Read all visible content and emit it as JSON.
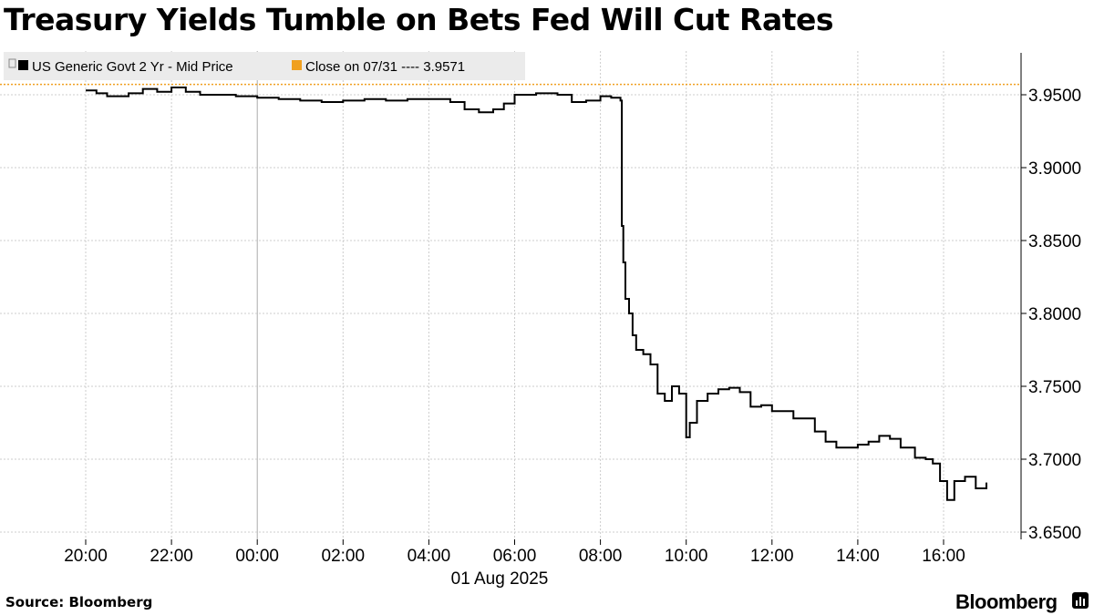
{
  "title": "Treasury Yields Tumble on Bets Fed Will Cut Rates",
  "source": "Source: Bloomberg",
  "brand": "Bloomberg",
  "colors": {
    "series": "#000000",
    "close_line": "#f0a020",
    "grid": "#cccccc",
    "legend_bg": "#ebebeb"
  },
  "chart_data": {
    "type": "line",
    "title": "Treasury Yields Tumble on Bets Fed Will Cut Rates",
    "xlabel": "01 Aug 2025",
    "ylabel": "",
    "ylim": [
      3.645,
      3.985
    ],
    "xlim_hours": [
      19.5,
      23.9
    ],
    "grid": true,
    "legend_placement": "top-left",
    "legend": [
      {
        "label": "US Generic Govt 2 Yr - Mid Price",
        "color": "#000000",
        "marker": "square"
      },
      {
        "label": "Close on 07/31 ---- 3.9571",
        "color": "#f0a020",
        "marker": "square"
      }
    ],
    "reference_line": {
      "label": "Close on 07/31",
      "value": 3.9571
    },
    "x_tick_labels": [
      "20:00",
      "22:00",
      "00:00",
      "02:00",
      "04:00",
      "06:00",
      "08:00",
      "10:00",
      "12:00",
      "14:00",
      "16:00"
    ],
    "y_tick_labels": [
      "3.9500",
      "3.9000",
      "3.8500",
      "3.8000",
      "3.7500",
      "3.7000",
      "3.6500"
    ],
    "y_ticks": [
      3.95,
      3.9,
      3.85,
      3.8,
      3.75,
      3.7,
      3.65
    ],
    "series": [
      {
        "name": "US Generic Govt 2 Yr - Mid Price",
        "x": [
          "07-31 20:00",
          "07-31 20:15",
          "07-31 20:30",
          "07-31 21:00",
          "07-31 21:20",
          "07-31 21:40",
          "07-31 22:00",
          "07-31 22:20",
          "07-31 22:40",
          "07-31 23:00",
          "07-31 23:30",
          "08-01 00:00",
          "08-01 00:30",
          "08-01 01:00",
          "08-01 01:30",
          "08-01 02:00",
          "08-01 02:30",
          "08-01 03:00",
          "08-01 03:30",
          "08-01 04:00",
          "08-01 04:30",
          "08-01 04:50",
          "08-01 05:10",
          "08-01 05:30",
          "08-01 05:45",
          "08-01 06:00",
          "08-01 06:30",
          "08-01 07:00",
          "08-01 07:20",
          "08-01 07:40",
          "08-01 08:00",
          "08-01 08:15",
          "08-01 08:28",
          "08-01 08:30",
          "08-01 08:32",
          "08-01 08:35",
          "08-01 08:40",
          "08-01 08:45",
          "08-01 08:50",
          "08-01 09:00",
          "08-01 09:10",
          "08-01 09:20",
          "08-01 09:30",
          "08-01 09:40",
          "08-01 09:50",
          "08-01 10:00",
          "08-01 10:05",
          "08-01 10:15",
          "08-01 10:30",
          "08-01 10:45",
          "08-01 11:00",
          "08-01 11:15",
          "08-01 11:30",
          "08-01 11:45",
          "08-01 12:00",
          "08-01 12:30",
          "08-01 13:00",
          "08-01 13:15",
          "08-01 13:30",
          "08-01 14:00",
          "08-01 14:15",
          "08-01 14:30",
          "08-01 14:45",
          "08-01 15:00",
          "08-01 15:20",
          "08-01 15:35",
          "08-01 15:45",
          "08-01 15:55",
          "08-01 16:05",
          "08-01 16:15",
          "08-01 16:30",
          "08-01 16:45",
          "08-01 17:00"
        ],
        "values": [
          3.953,
          3.951,
          3.949,
          3.951,
          3.954,
          3.952,
          3.955,
          3.952,
          3.95,
          3.95,
          3.949,
          3.948,
          3.947,
          3.946,
          3.945,
          3.946,
          3.947,
          3.946,
          3.947,
          3.947,
          3.945,
          3.94,
          3.938,
          3.94,
          3.944,
          3.95,
          3.951,
          3.95,
          3.945,
          3.946,
          3.949,
          3.948,
          3.946,
          3.86,
          3.835,
          3.81,
          3.8,
          3.785,
          3.775,
          3.772,
          3.765,
          3.745,
          3.74,
          3.75,
          3.745,
          3.715,
          3.725,
          3.74,
          3.745,
          3.748,
          3.749,
          3.746,
          3.736,
          3.737,
          3.733,
          3.728,
          3.719,
          3.712,
          3.708,
          3.71,
          3.712,
          3.716,
          3.714,
          3.708,
          3.701,
          3.7,
          3.697,
          3.685,
          3.672,
          3.685,
          3.688,
          3.68,
          3.684
        ]
      }
    ]
  }
}
